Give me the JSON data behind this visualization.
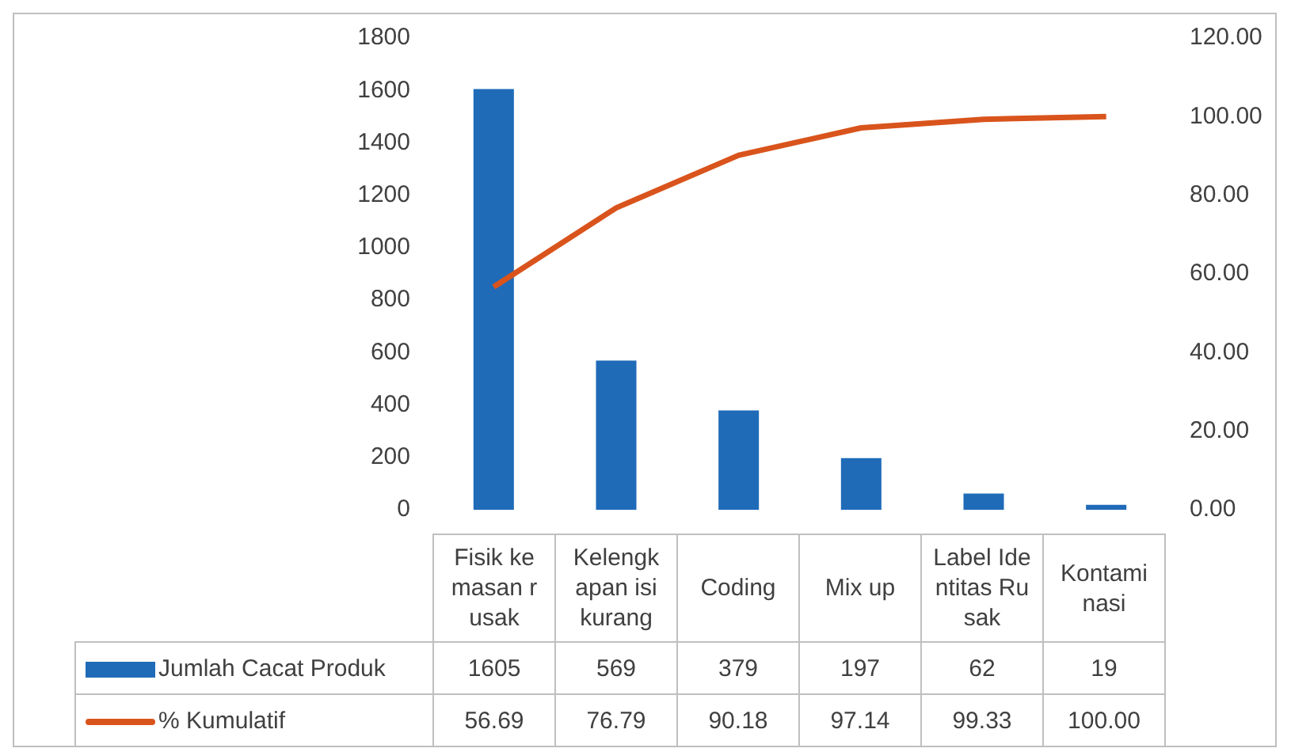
{
  "chart_data": {
    "type": "bar",
    "categories": [
      "Fisik kemasan rusak",
      "Kelengkapan isi kurang",
      "Coding",
      "Mix up",
      "Label Identitas Rusak",
      "Kontaminasi"
    ],
    "series": [
      {
        "name": "Jumlah Cacat Produk",
        "color": "#1f6bb8",
        "values": [
          1605,
          569,
          379,
          197,
          62,
          19
        ],
        "value_labels": [
          "1605",
          "569",
          "379",
          "197",
          "62",
          "19"
        ]
      },
      {
        "name": "% Kumulatif",
        "type": "line",
        "axis": "y2",
        "color": "#d9541c",
        "values": [
          56.69,
          76.79,
          90.18,
          97.14,
          99.33,
          100.0
        ],
        "value_labels": [
          "56.69",
          "76.79",
          "90.18",
          "97.14",
          "99.33",
          "100.00"
        ]
      }
    ],
    "ylim": [
      0,
      1800
    ],
    "yticks": [
      0,
      200,
      400,
      600,
      800,
      1000,
      1200,
      1400,
      1600,
      1800
    ],
    "y2lim": [
      0,
      120
    ],
    "y2ticks": [
      {
        "value": 0,
        "label": "0.00"
      },
      {
        "value": 20,
        "label": "20.00"
      },
      {
        "value": 40,
        "label": "40.00"
      },
      {
        "value": 60,
        "label": "60.00"
      },
      {
        "value": 80,
        "label": "80.00"
      },
      {
        "value": 100,
        "label": "100.00"
      },
      {
        "value": 120,
        "label": "120.00"
      }
    ],
    "grid": false,
    "legend": "bottom",
    "marker": "none",
    "line_style": "solid"
  }
}
